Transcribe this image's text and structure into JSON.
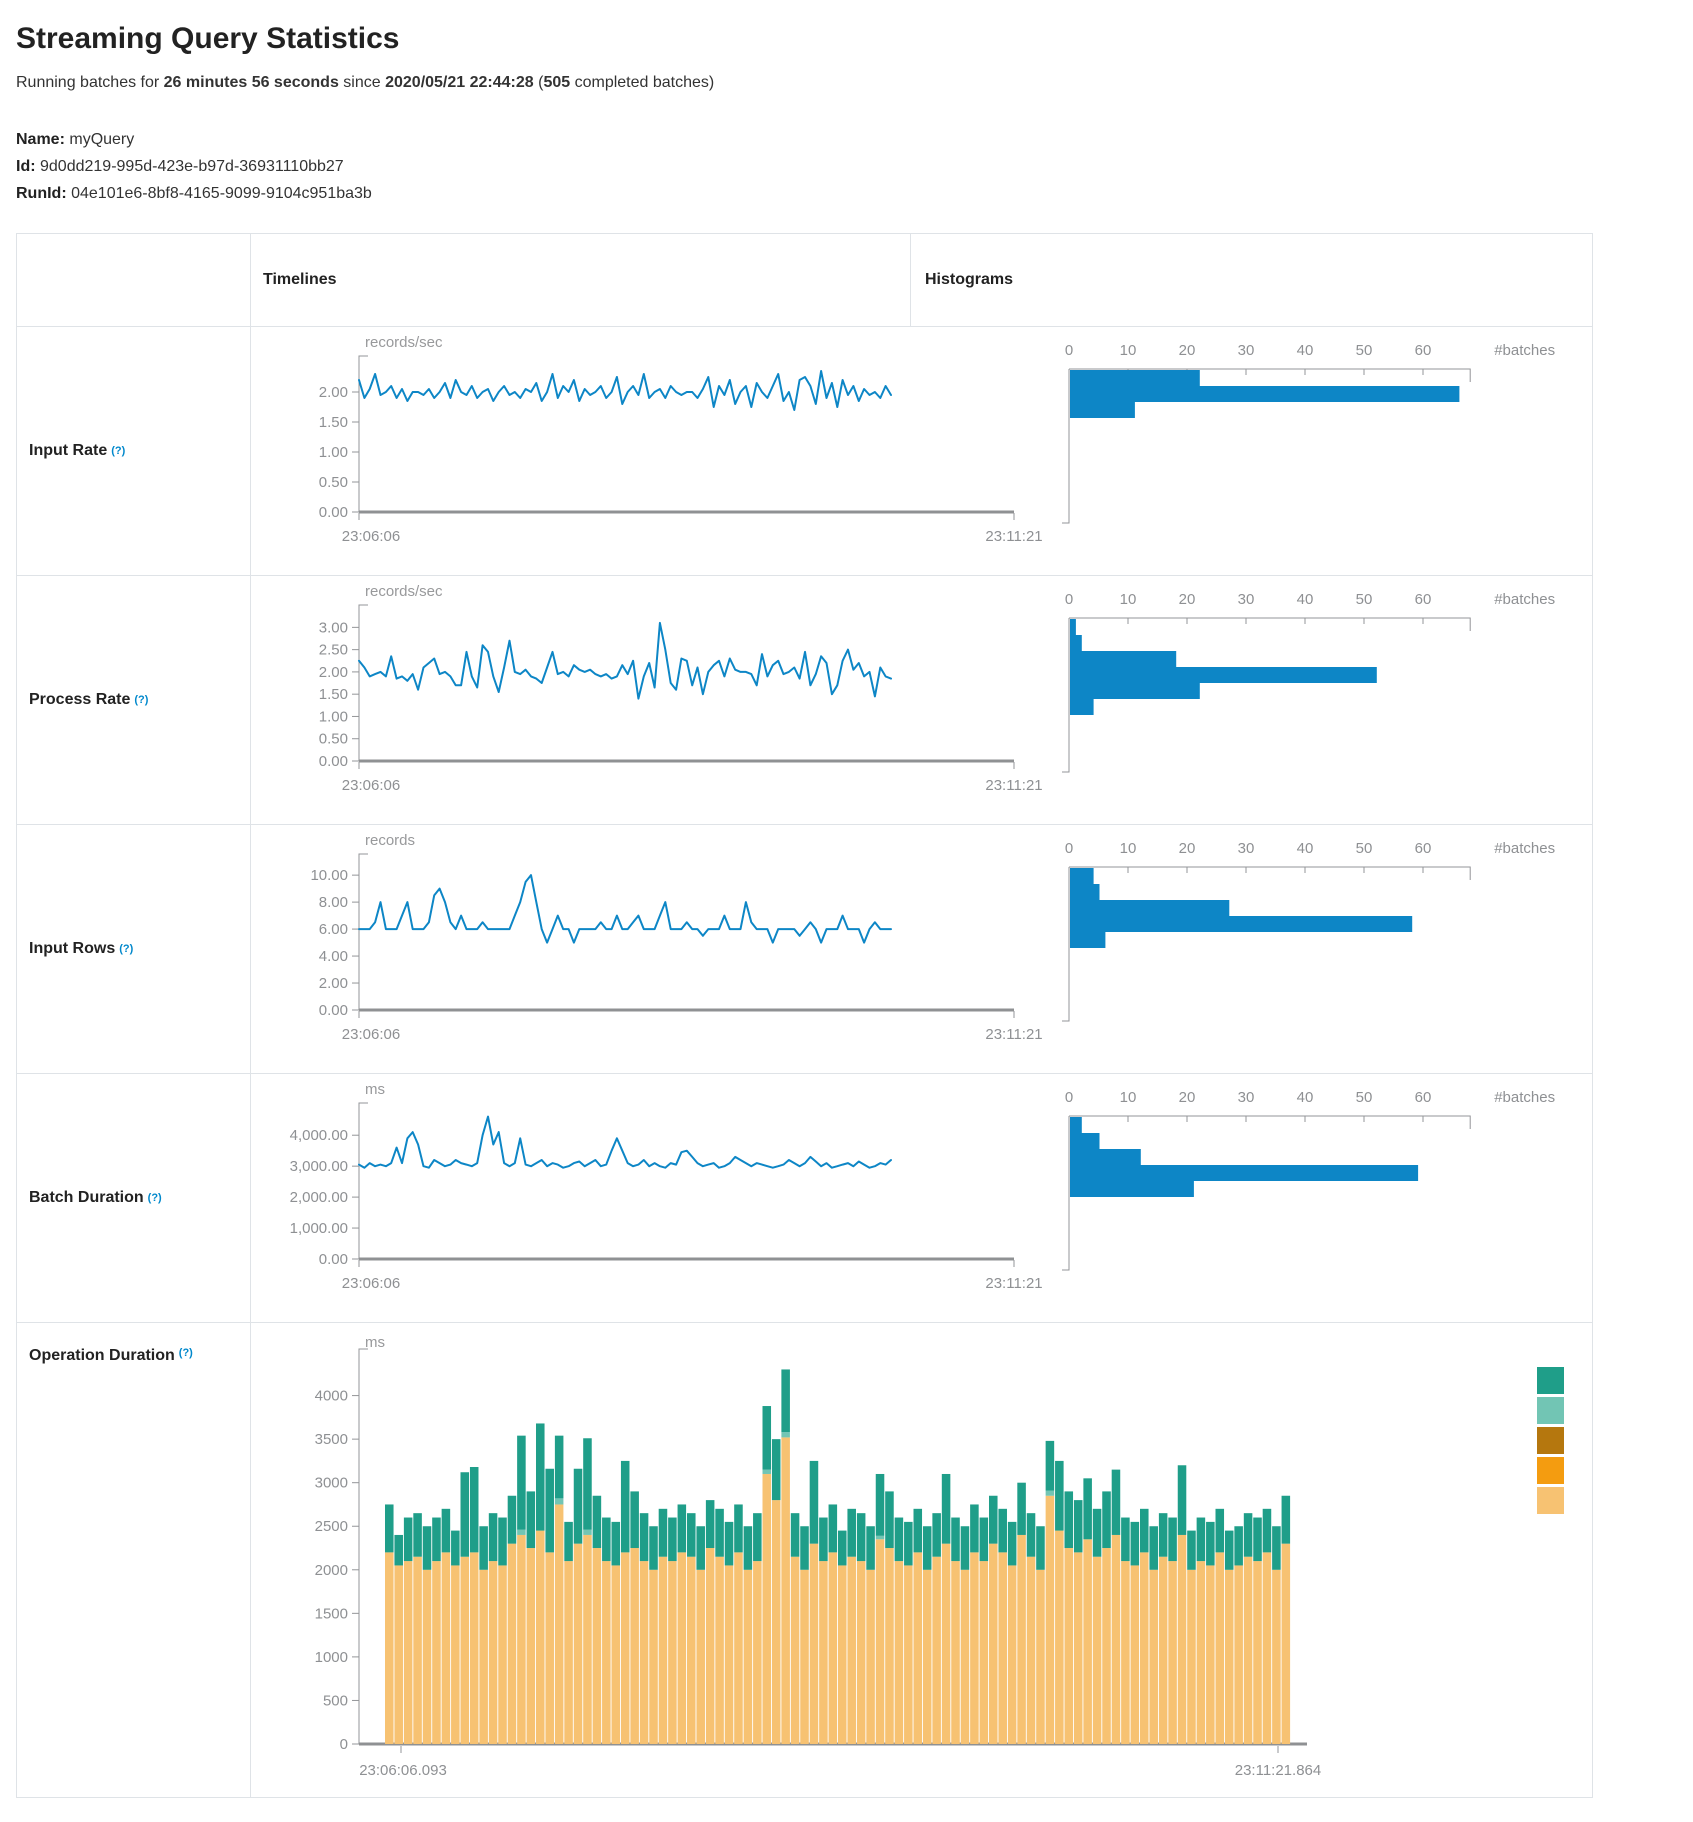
{
  "page": {
    "title": "Streaming Query Statistics",
    "subtitle": {
      "prefix": "Running batches for ",
      "duration": "26 minutes 56 seconds",
      "middle": " since ",
      "start_time": "2020/05/21 22:44:28",
      "paren_open": " (",
      "batches": "505",
      "suffix": " completed batches)"
    },
    "name_label": "Name:",
    "name_value": "myQuery",
    "id_label": "Id:",
    "id_value": "9d0dd219-995d-423e-b97d-36931110bb27",
    "runid_label": "RunId:",
    "runid_value": "04e101e6-8bf8-4165-9099-9104c951ba3b"
  },
  "table": {
    "headers": {
      "timelines": "Timelines",
      "histograms": "Histograms"
    },
    "rows": [
      {
        "label": "Input Rate",
        "help": "(?)"
      },
      {
        "label": "Process Rate",
        "help": "(?)"
      },
      {
        "label": "Input Rows",
        "help": "(?)"
      },
      {
        "label": "Batch Duration",
        "help": "(?)"
      },
      {
        "label": "Operation Duration",
        "help": "(?)"
      }
    ]
  },
  "chart_data": {
    "input_rate": {
      "timeline": {
        "type": "line",
        "unit": "records/sec",
        "color": "#0d86c6",
        "x_start_label": "23:06:06",
        "x_end_label": "23:11:21",
        "yticks": [
          0,
          0.5,
          1,
          1.5,
          2
        ],
        "ytick_labels": [
          "0.00",
          "0.50",
          "1.00",
          "1.50",
          "2.00"
        ],
        "ymax": 2.45,
        "values": [
          2.2,
          1.9,
          2.05,
          2.3,
          1.95,
          2.0,
          2.1,
          1.9,
          2.05,
          1.85,
          2.0,
          2.0,
          1.95,
          2.05,
          1.9,
          2.0,
          2.15,
          1.9,
          2.2,
          2.0,
          1.95,
          2.1,
          1.9,
          2.0,
          2.05,
          1.85,
          2.0,
          2.1,
          1.95,
          2.0,
          1.9,
          2.05,
          2.0,
          2.15,
          1.85,
          2.0,
          2.3,
          1.9,
          2.1,
          2.0,
          2.2,
          1.85,
          2.05,
          1.95,
          2.0,
          2.1,
          1.9,
          2.0,
          2.25,
          1.8,
          2.0,
          2.1,
          1.95,
          2.3,
          1.9,
          2.0,
          2.05,
          1.9,
          2.1,
          2.0,
          1.95,
          2.0,
          2.0,
          1.9,
          2.05,
          2.25,
          1.75,
          2.1,
          1.95,
          2.2,
          1.8,
          2.0,
          2.1,
          1.75,
          2.15,
          2.0,
          1.9,
          2.1,
          2.3,
          1.85,
          2.0,
          1.7,
          2.2,
          2.25,
          2.1,
          1.8,
          2.35,
          1.9,
          2.15,
          1.75,
          2.2,
          1.95,
          2.1,
          1.85,
          2.05,
          1.95,
          2.0,
          1.9,
          2.1,
          1.95
        ]
      },
      "histogram": {
        "type": "histogram-horizontal",
        "color": "#0d86c6",
        "unit": "#batches",
        "xticks": [
          0,
          10,
          20,
          30,
          40,
          50,
          60
        ],
        "axis_end": 68,
        "values": [
          22,
          66,
          11
        ]
      }
    },
    "process_rate": {
      "timeline": {
        "type": "line",
        "unit": "records/sec",
        "color": "#0d86c6",
        "x_start_label": "23:06:06",
        "x_end_label": "23:11:21",
        "yticks": [
          0,
          0.5,
          1,
          1.5,
          2,
          2.5,
          3
        ],
        "ytick_labels": [
          "0.00",
          "0.50",
          "1.00",
          "1.50",
          "2.00",
          "2.50",
          "3.00"
        ],
        "ymax": 3.3,
        "values": [
          2.25,
          2.1,
          1.9,
          1.95,
          2.0,
          1.9,
          2.35,
          1.85,
          1.9,
          1.8,
          1.95,
          1.6,
          2.1,
          2.2,
          2.3,
          1.95,
          2.0,
          1.9,
          1.7,
          1.7,
          2.45,
          1.9,
          1.65,
          2.6,
          2.45,
          1.9,
          1.55,
          2.1,
          2.7,
          2.0,
          1.95,
          2.05,
          1.9,
          1.85,
          1.75,
          2.1,
          2.45,
          1.95,
          2.0,
          1.9,
          2.15,
          2.05,
          2.0,
          2.05,
          1.95,
          1.9,
          1.95,
          1.85,
          1.9,
          2.15,
          1.95,
          2.25,
          1.4,
          1.9,
          2.2,
          1.65,
          3.1,
          2.5,
          1.75,
          1.6,
          2.3,
          2.25,
          1.7,
          2.1,
          1.5,
          2.0,
          2.15,
          2.25,
          1.9,
          2.3,
          2.05,
          2.0,
          2.0,
          1.95,
          1.7,
          2.4,
          1.9,
          2.15,
          2.25,
          1.95,
          2.0,
          2.1,
          1.85,
          2.45,
          1.7,
          1.95,
          2.35,
          2.2,
          1.5,
          1.7,
          2.25,
          2.5,
          2.05,
          2.2,
          1.9,
          2.0,
          1.45,
          2.1,
          1.9,
          1.85
        ]
      },
      "histogram": {
        "type": "histogram-horizontal",
        "color": "#0d86c6",
        "unit": "#batches",
        "xticks": [
          0,
          10,
          20,
          30,
          40,
          50,
          60
        ],
        "axis_end": 68,
        "values": [
          1,
          2,
          18,
          52,
          22,
          4
        ]
      }
    },
    "input_rows": {
      "timeline": {
        "type": "line",
        "unit": "records",
        "color": "#0d86c6",
        "x_start_label": "23:06:06",
        "x_end_label": "23:11:21",
        "yticks": [
          0,
          2,
          4,
          6,
          8,
          10
        ],
        "ytick_labels": [
          "0.00",
          "2.00",
          "4.00",
          "6.00",
          "8.00",
          "10.00"
        ],
        "ymax": 10.9,
        "values": [
          6,
          6,
          6,
          6.5,
          8,
          6,
          6,
          6,
          7,
          8,
          6,
          6,
          6,
          6.5,
          8.5,
          9,
          8,
          6.5,
          6,
          7,
          6,
          6,
          6,
          6.5,
          6,
          6,
          6,
          6,
          6,
          7,
          8,
          9.5,
          10,
          8,
          6,
          5,
          6,
          7,
          6,
          6,
          5,
          6,
          6,
          6,
          6,
          6.5,
          6,
          6,
          7,
          6,
          6,
          6.5,
          7,
          6,
          6,
          6,
          7,
          8,
          6,
          6,
          6,
          6.5,
          6,
          6,
          5.5,
          6,
          6,
          6,
          7,
          6,
          6,
          6,
          8,
          6.5,
          6,
          6,
          6,
          5,
          6,
          6,
          6,
          6,
          5.5,
          6,
          6.5,
          6,
          5,
          6,
          6,
          6,
          7,
          6,
          6,
          6,
          5,
          6,
          6.5,
          6,
          6,
          6
        ]
      },
      "histogram": {
        "type": "histogram-horizontal",
        "color": "#0d86c6",
        "unit": "#batches",
        "xticks": [
          0,
          10,
          20,
          30,
          40,
          50,
          60
        ],
        "axis_end": 68,
        "values": [
          4,
          5,
          27,
          58,
          6
        ]
      }
    },
    "batch_duration": {
      "timeline": {
        "type": "line",
        "unit": "ms",
        "color": "#0d86c6",
        "x_start_label": "23:06:06",
        "x_end_label": "23:11:21",
        "yticks": [
          0,
          1000,
          2000,
          3000,
          4000
        ],
        "ytick_labels": [
          "0.00",
          "1,000.00",
          "2,000.00",
          "3,000.00",
          "4,000.00"
        ],
        "ymax": 4750,
        "values": [
          3050,
          2950,
          3100,
          3000,
          3050,
          3000,
          3100,
          3600,
          3100,
          3900,
          4100,
          3700,
          3000,
          2950,
          3200,
          3100,
          3000,
          3050,
          3200,
          3100,
          3050,
          3000,
          3100,
          4000,
          4600,
          3700,
          4100,
          3100,
          3000,
          3100,
          3900,
          3050,
          3000,
          3100,
          3200,
          3000,
          3100,
          3050,
          2950,
          3000,
          3100,
          3150,
          3000,
          3100,
          3200,
          3000,
          3050,
          3500,
          3900,
          3500,
          3100,
          3000,
          3050,
          3200,
          3000,
          3100,
          3000,
          2950,
          3100,
          3050,
          3450,
          3500,
          3300,
          3100,
          3000,
          3050,
          3100,
          2950,
          3000,
          3100,
          3300,
          3200,
          3100,
          3000,
          3100,
          3050,
          3000,
          2950,
          3000,
          3050,
          3200,
          3100,
          3000,
          3100,
          3300,
          3150,
          3000,
          3100,
          2950,
          3000,
          3050,
          3100,
          3000,
          3150,
          3050,
          2950,
          3000,
          3100,
          3050,
          3200
        ]
      },
      "histogram": {
        "type": "histogram-horizontal",
        "color": "#0d86c6",
        "unit": "#batches",
        "xticks": [
          0,
          10,
          20,
          30,
          40,
          50,
          60
        ],
        "axis_end": 68,
        "values": [
          2,
          5,
          12,
          59,
          21
        ]
      }
    },
    "operation_duration": {
      "type": "stacked-bar",
      "unit": "ms",
      "x_start_label": "23:06:06.093",
      "x_end_label": "23:11:21.864",
      "yticks": [
        0,
        500,
        1000,
        1500,
        2000,
        2500,
        3000,
        3500,
        4000
      ],
      "ytick_labels": [
        "0",
        "500",
        "1000",
        "1500",
        "2000",
        "2500",
        "3000",
        "3500",
        "4000"
      ],
      "ymax": 4420,
      "legend_colors": [
        "#1f9e89",
        "#72c5b4",
        "#b5770e",
        "#f49c10",
        "#f7c272"
      ],
      "series": [
        {
          "color": "#f7c272",
          "values": [
            2200,
            2050,
            2100,
            2150,
            2000,
            2100,
            2200,
            2050,
            2150,
            2200,
            2000,
            2100,
            2050,
            2300,
            2400,
            2250,
            2450,
            2200,
            2750,
            2100,
            2300,
            2400,
            2250,
            2100,
            2050,
            2200,
            2250,
            2100,
            2000,
            2150,
            2100,
            2200,
            2150,
            2000,
            2250,
            2150,
            2050,
            2200,
            2000,
            2100,
            3100,
            2800,
            3520,
            2150,
            2000,
            2300,
            2100,
            2200,
            2050,
            2150,
            2100,
            2000,
            2350,
            2250,
            2100,
            2050,
            2200,
            2000,
            2150,
            2300,
            2100,
            2000,
            2200,
            2100,
            2300,
            2200,
            2050,
            2400,
            2150,
            2000,
            2850,
            2450,
            2250,
            2200,
            2350,
            2150,
            2250,
            2400,
            2100,
            2050,
            2200,
            2000,
            2150,
            2100,
            2400,
            2000,
            2100,
            2050,
            2200,
            2000,
            2050,
            2150,
            2100,
            2200,
            2000,
            2300
          ]
        },
        {
          "color": "#72c5b4",
          "values": [
            0,
            0,
            0,
            0,
            0,
            0,
            0,
            0,
            0,
            0,
            0,
            0,
            0,
            0,
            60,
            0,
            0,
            0,
            70,
            0,
            0,
            60,
            0,
            0,
            0,
            0,
            0,
            0,
            0,
            0,
            0,
            0,
            0,
            0,
            0,
            0,
            0,
            0,
            0,
            0,
            50,
            0,
            60,
            0,
            0,
            0,
            0,
            0,
            0,
            0,
            0,
            0,
            40,
            0,
            0,
            0,
            0,
            0,
            0,
            0,
            0,
            0,
            0,
            0,
            0,
            0,
            0,
            0,
            0,
            0,
            60,
            0,
            0,
            0,
            0,
            0,
            0,
            0,
            0,
            0,
            0,
            0,
            0,
            0,
            0,
            0,
            0,
            0,
            0,
            0,
            0,
            0,
            0,
            0,
            0,
            0
          ]
        },
        {
          "color": "#1f9e89",
          "values": [
            550,
            350,
            500,
            500,
            500,
            500,
            500,
            400,
            970,
            980,
            500,
            550,
            550,
            550,
            1080,
            650,
            1230,
            960,
            720,
            450,
            860,
            1050,
            600,
            500,
            500,
            1050,
            650,
            550,
            500,
            550,
            500,
            550,
            500,
            500,
            550,
            550,
            500,
            550,
            500,
            550,
            730,
            700,
            720,
            500,
            500,
            950,
            500,
            550,
            400,
            550,
            550,
            500,
            710,
            650,
            500,
            500,
            500,
            500,
            500,
            800,
            500,
            500,
            550,
            500,
            550,
            500,
            500,
            600,
            500,
            500,
            570,
            800,
            650,
            600,
            700,
            550,
            650,
            750,
            500,
            500,
            500,
            500,
            500,
            500,
            800,
            450,
            500,
            500,
            500,
            450,
            450,
            500,
            500,
            500,
            500,
            550
          ]
        }
      ]
    }
  }
}
